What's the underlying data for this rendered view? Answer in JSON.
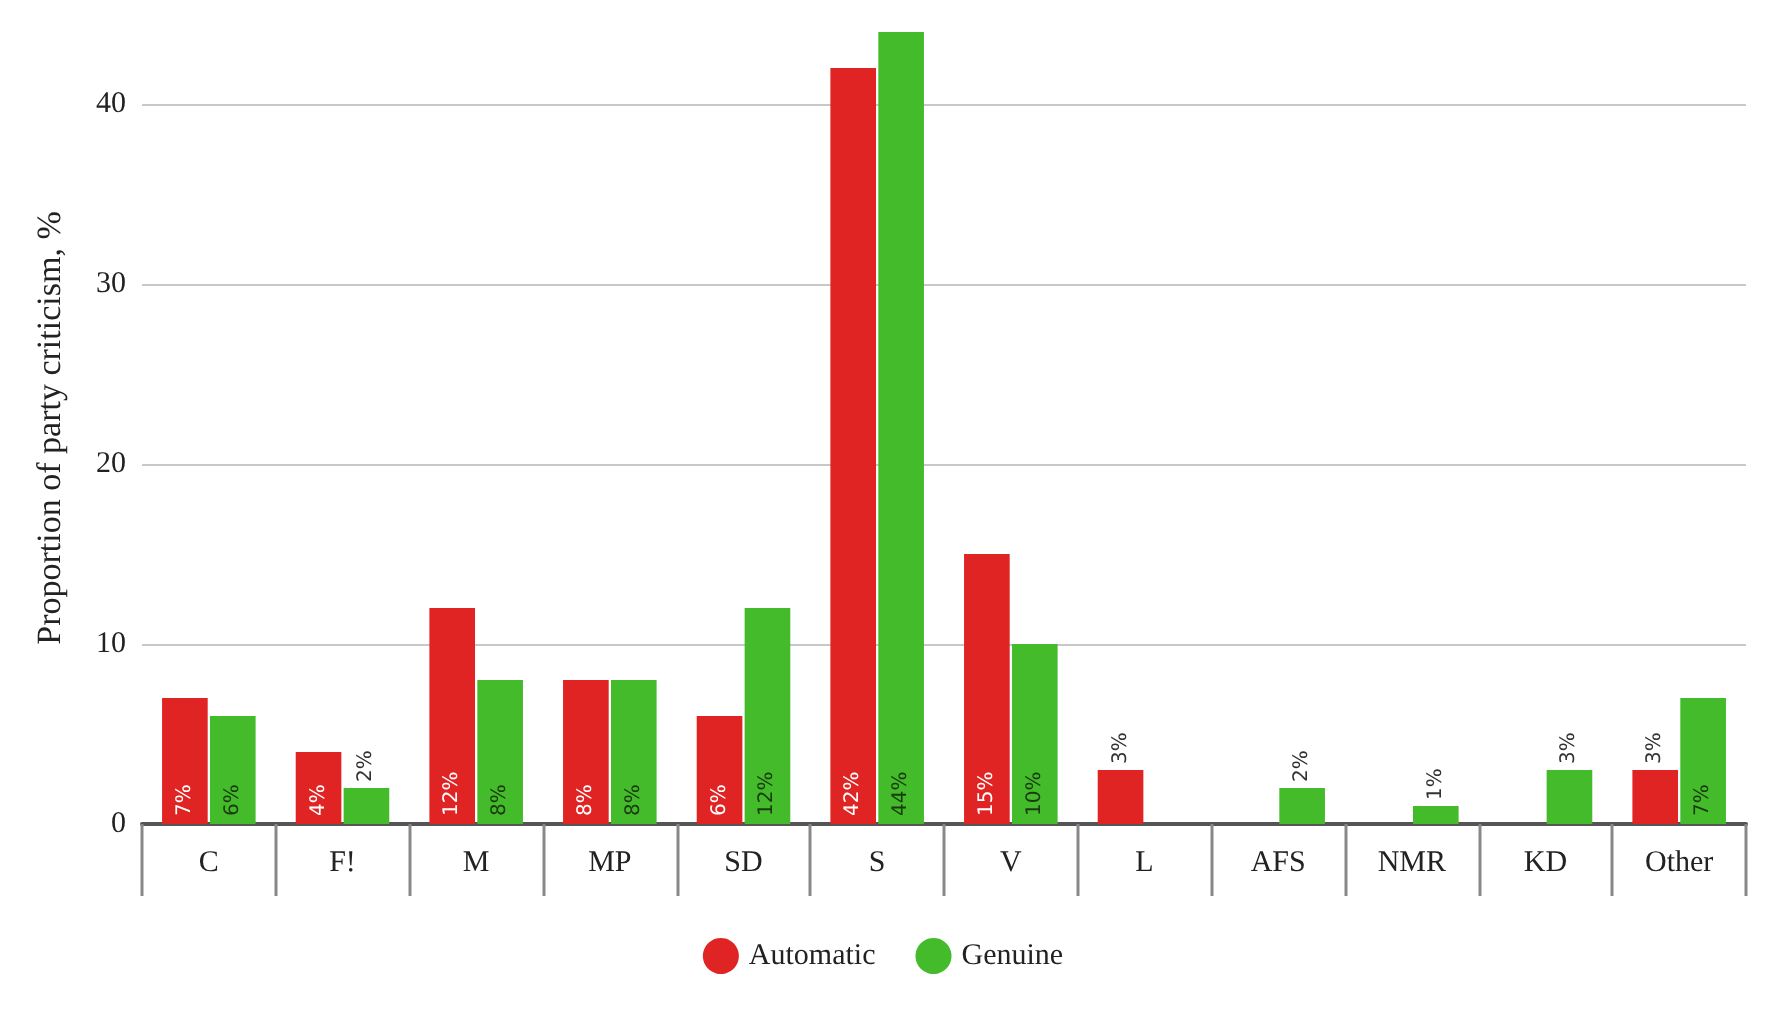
{
  "chart_data": {
    "type": "bar",
    "ylabel": "Proportion of party criticism, %",
    "categories": [
      "C",
      "F!",
      "M",
      "MP",
      "SD",
      "S",
      "V",
      "L",
      "AFS",
      "NMR",
      "KD",
      "Other"
    ],
    "series": [
      {
        "name": "Automatic",
        "color": "#e02424",
        "values": [
          7,
          4,
          12,
          8,
          6,
          42,
          15,
          3,
          null,
          null,
          null,
          3
        ],
        "value_labels": [
          "7%",
          "4%",
          "12%",
          "8%",
          "6%",
          "42%",
          "15%",
          "3%",
          null,
          null,
          null,
          "3%"
        ]
      },
      {
        "name": "Genuine",
        "color": "#44bb2a",
        "values": [
          6,
          2,
          8,
          8,
          12,
          44,
          10,
          null,
          2,
          1,
          3,
          7
        ],
        "value_labels": [
          "6%",
          "2%",
          "8%",
          "8%",
          "12%",
          "44%",
          "10%",
          null,
          "2%",
          "1%",
          "3%",
          "7%"
        ]
      }
    ],
    "ylim": [
      0,
      44
    ],
    "yticks": [
      0,
      10,
      20,
      30,
      40
    ],
    "grid": "y",
    "legend": "bottom"
  }
}
